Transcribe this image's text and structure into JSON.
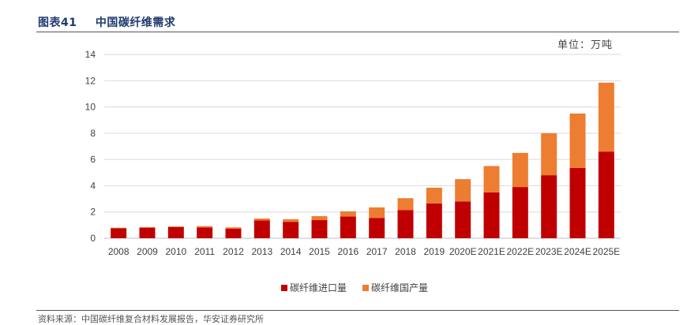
{
  "figure": {
    "label": "图表41",
    "title": "中国碳纤维需求",
    "unit": "单位：万吨",
    "source": "资料来源：中国碳纤维复合材料发展报告，华安证券研究所"
  },
  "colors": {
    "import": "#c00000",
    "domestic": "#ed7d31",
    "grid": "#d9d9d9",
    "axis": "#bfbfbf"
  },
  "chart_data": {
    "type": "bar",
    "stacked": true,
    "categories": [
      "2008",
      "2009",
      "2010",
      "2011",
      "2012",
      "2013",
      "2014",
      "2015",
      "2016",
      "2017",
      "2018",
      "2019",
      "2020E",
      "2021E",
      "2022E",
      "2023E",
      "2024E",
      "2025E"
    ],
    "series": [
      {
        "name": "碳纤维进口量",
        "values": [
          0.75,
          0.8,
          0.85,
          0.82,
          0.73,
          1.35,
          1.25,
          1.38,
          1.65,
          1.55,
          2.15,
          2.65,
          2.8,
          3.5,
          3.9,
          4.8,
          5.35,
          6.6
        ]
      },
      {
        "name": "碳纤维国产量",
        "values": [
          0.05,
          0.05,
          0.05,
          0.1,
          0.1,
          0.15,
          0.2,
          0.3,
          0.4,
          0.8,
          0.9,
          1.2,
          1.7,
          2.0,
          2.6,
          3.2,
          4.15,
          5.25
        ]
      }
    ],
    "ylim": [
      0,
      14
    ],
    "yticks": [
      0,
      2,
      4,
      6,
      8,
      10,
      12,
      14
    ],
    "grid": true,
    "legend": "bottom"
  }
}
